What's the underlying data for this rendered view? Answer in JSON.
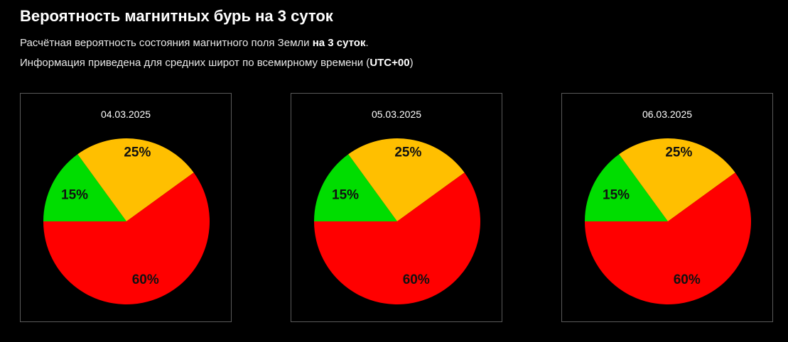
{
  "header": {
    "title": "Вероятность магнитных бурь на 3 суток",
    "line1_text": "Расчётная вероятность состояния магнитного поля Земли ",
    "line1_bold": "на 3 суток",
    "line1_end": ".",
    "line2_text": "Информация приведена для средних широт по всемирному времени (",
    "line2_bold": "UTC+00",
    "line2_end": ")"
  },
  "colors": {
    "background": "#000000",
    "green": "#00dd00",
    "yellow": "#ffbf00",
    "red": "#ff0000"
  },
  "chart_data": [
    {
      "type": "pie",
      "title": "04.03.2025",
      "categories": [
        "",
        "",
        ""
      ],
      "values": [
        15,
        25,
        60
      ],
      "labels": [
        "15%",
        "25%",
        "60%"
      ],
      "colors": [
        "#00dd00",
        "#ffbf00",
        "#ff0000"
      ]
    },
    {
      "type": "pie",
      "title": "05.03.2025",
      "categories": [
        "",
        "",
        ""
      ],
      "values": [
        15,
        25,
        60
      ],
      "labels": [
        "15%",
        "25%",
        "60%"
      ],
      "colors": [
        "#00dd00",
        "#ffbf00",
        "#ff0000"
      ]
    },
    {
      "type": "pie",
      "title": "06.03.2025",
      "categories": [
        "",
        "",
        ""
      ],
      "values": [
        15,
        25,
        60
      ],
      "labels": [
        "15%",
        "25%",
        "60%"
      ],
      "colors": [
        "#00dd00",
        "#ffbf00",
        "#ff0000"
      ]
    }
  ]
}
